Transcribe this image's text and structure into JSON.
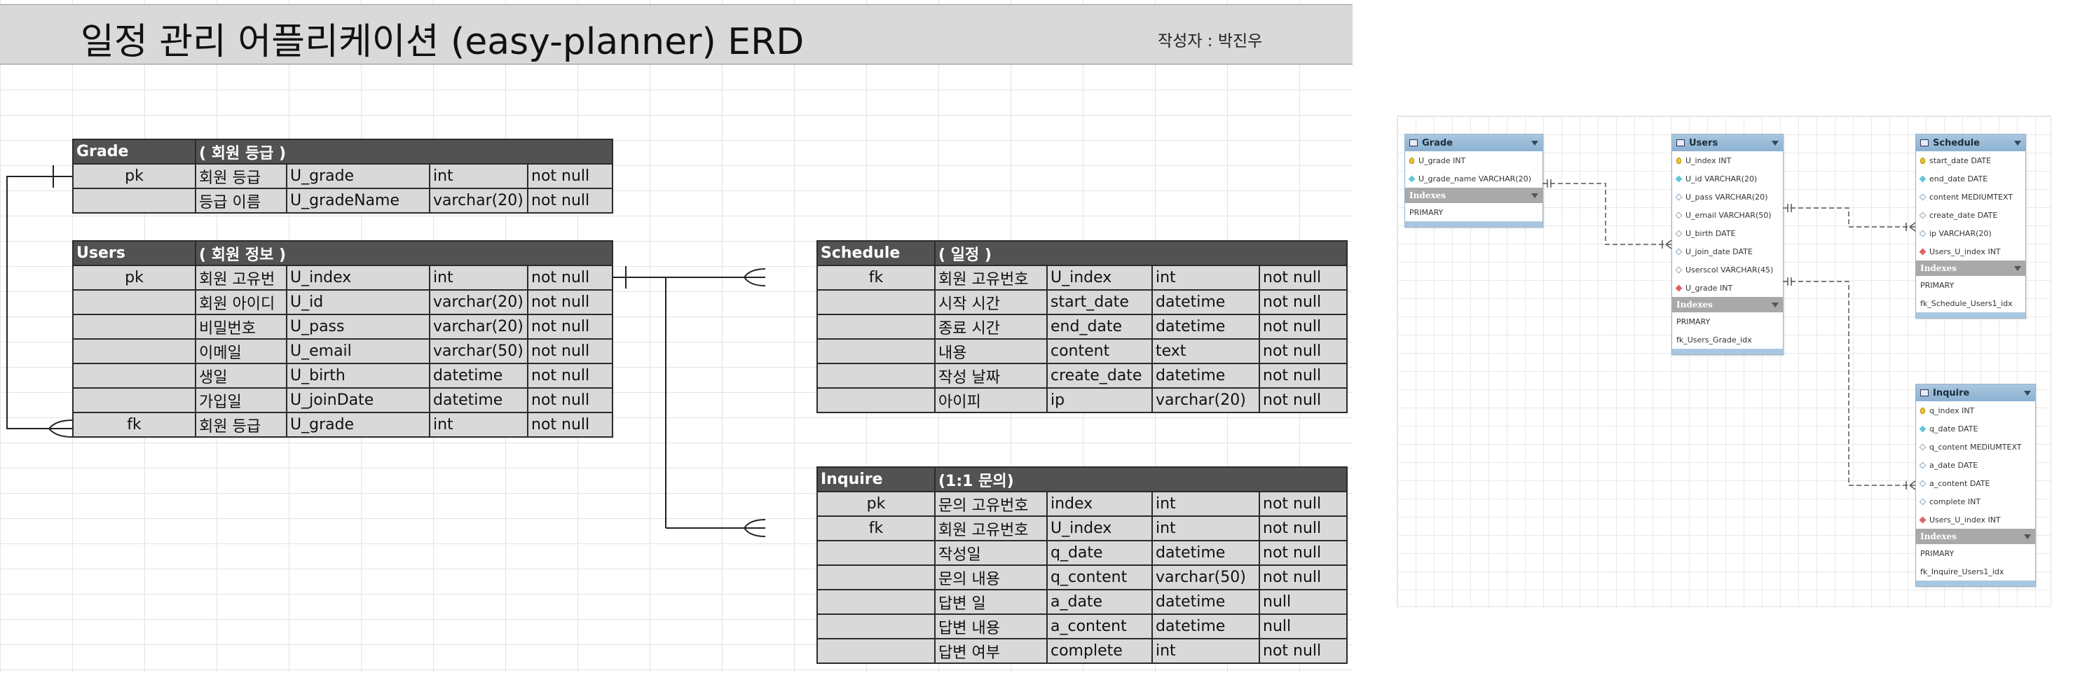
{
  "title": "일정 관리 어플리케이션 (easy-planner) ERD",
  "author": "작성자 : 박진우",
  "tables": {
    "grade": {
      "name": "Grade",
      "desc": "( 회원 등급 )",
      "rows": [
        [
          "pk",
          "회원 등급",
          "U_grade",
          "int",
          "not null"
        ],
        [
          "",
          "등급 이름",
          "U_gradeName",
          "varchar(20)",
          "not null"
        ]
      ]
    },
    "users": {
      "name": "Users",
      "desc": "( 회원 정보 )",
      "rows": [
        [
          "pk",
          "회원 고유번",
          "U_index",
          "int",
          "not null"
        ],
        [
          "",
          "회원 아이디",
          "U_id",
          "varchar(20)",
          "not null"
        ],
        [
          "",
          "비밀번호",
          "U_pass",
          "varchar(20)",
          "not null"
        ],
        [
          "",
          "이메일",
          "U_email",
          "varchar(50)",
          "not null"
        ],
        [
          "",
          "생일",
          "U_birth",
          "datetime",
          "not null"
        ],
        [
          "",
          "가입일",
          "U_joinDate",
          "datetime",
          "not null"
        ],
        [
          "fk",
          "회원 등급",
          "U_grade",
          "int",
          "not null"
        ]
      ]
    },
    "schedule": {
      "name": "Schedule",
      "desc": "( 일정 )",
      "rows": [
        [
          "fk",
          "회원 고유번호",
          "U_index",
          "int",
          "not null"
        ],
        [
          "",
          "시작 시간",
          "start_date",
          "datetime",
          "not null"
        ],
        [
          "",
          "종료 시간",
          "end_date",
          "datetime",
          "not null"
        ],
        [
          "",
          "내용",
          "content",
          "text",
          "not null"
        ],
        [
          "",
          "작성 날짜",
          "create_date",
          "datetime",
          "not null"
        ],
        [
          "",
          "아이피",
          "ip",
          "varchar(20)",
          "not null"
        ]
      ]
    },
    "inquire": {
      "name": "Inquire",
      "desc": "(1:1 문의)",
      "rows": [
        [
          "pk",
          "문의 고유번호",
          "index",
          "int",
          "not null"
        ],
        [
          "fk",
          "회원 고유번호",
          "U_index",
          "int",
          "not null"
        ],
        [
          "",
          "작성일",
          "q_date",
          "datetime",
          "not null"
        ],
        [
          "",
          "문의 내용",
          "q_content",
          "varchar(50)",
          "not null"
        ],
        [
          "",
          "답변 일",
          "a_date",
          "datetime",
          "null"
        ],
        [
          "",
          "답변 내용",
          "a_content",
          "datetime",
          "null"
        ],
        [
          "",
          "답변 여부",
          "complete",
          "int",
          "not null"
        ]
      ]
    }
  },
  "workbench": {
    "indexes_label": "Indexes",
    "tables": [
      {
        "name": "Grade",
        "columns": [
          {
            "icon": "key",
            "text": "U_grade INT"
          },
          {
            "icon": "diamond",
            "text": "U_grade_name VARCHAR(20)"
          }
        ],
        "indexes": [
          "PRIMARY"
        ]
      },
      {
        "name": "Users",
        "columns": [
          {
            "icon": "key",
            "text": "U_index INT"
          },
          {
            "icon": "diamond",
            "text": "U_id VARCHAR(20)"
          },
          {
            "icon": "hollow",
            "text": "U_pass VARCHAR(20)"
          },
          {
            "icon": "hollow",
            "text": "U_email VARCHAR(50)"
          },
          {
            "icon": "hollow",
            "text": "U_birth DATE"
          },
          {
            "icon": "hollow",
            "text": "U_join_date DATE"
          },
          {
            "icon": "hollow",
            "text": "Userscol VARCHAR(45)"
          },
          {
            "icon": "fk",
            "text": "U_grade INT"
          }
        ],
        "indexes": [
          "PRIMARY",
          "fk_Users_Grade_idx"
        ]
      },
      {
        "name": "Schedule",
        "columns": [
          {
            "icon": "key",
            "text": "start_date DATE"
          },
          {
            "icon": "diamond",
            "text": "end_date DATE"
          },
          {
            "icon": "hollow",
            "text": "content MEDIUMTEXT"
          },
          {
            "icon": "hollow",
            "text": "create_date DATE"
          },
          {
            "icon": "hollow",
            "text": "ip VARCHAR(20)"
          },
          {
            "icon": "fk",
            "text": "Users_U_index INT"
          }
        ],
        "indexes": [
          "PRIMARY",
          "fk_Schedule_Users1_idx"
        ]
      },
      {
        "name": "Inquire",
        "columns": [
          {
            "icon": "key",
            "text": "q_index INT"
          },
          {
            "icon": "diamond",
            "text": "q_date DATE"
          },
          {
            "icon": "hollow",
            "text": "q_content MEDIUMTEXT"
          },
          {
            "icon": "hollow",
            "text": "a_date DATE"
          },
          {
            "icon": "hollow",
            "text": "a_content DATE"
          },
          {
            "icon": "hollow",
            "text": "complete INT"
          },
          {
            "icon": "fk",
            "text": "Users_U_index INT"
          }
        ],
        "indexes": [
          "PRIMARY",
          "fk_Inquire_Users1_idx"
        ]
      }
    ]
  }
}
